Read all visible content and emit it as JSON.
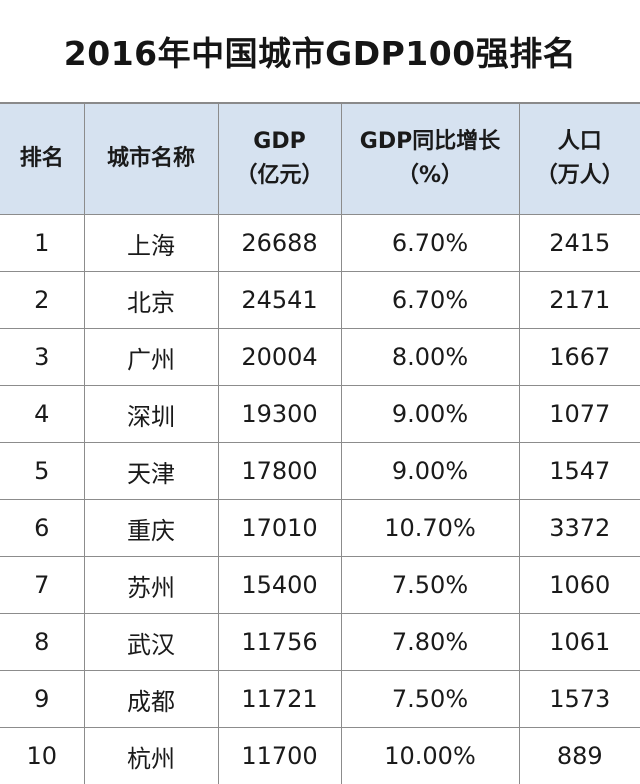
{
  "title": "2016年中国城市GDP100强排名",
  "headers": {
    "rank": "排名",
    "city": "城市名称",
    "gdp_line1": "GDP",
    "gdp_line2": "（亿元）",
    "growth_line1": "GDP同比增长",
    "growth_line2": "（%）",
    "pop_line1": "人口",
    "pop_line2": "（万人）"
  },
  "rows": [
    {
      "rank": "1",
      "city": "上海",
      "gdp": "26688",
      "growth": "6.70%",
      "population": "2415"
    },
    {
      "rank": "2",
      "city": "北京",
      "gdp": "24541",
      "growth": "6.70%",
      "population": "2171"
    },
    {
      "rank": "3",
      "city": "广州",
      "gdp": "20004",
      "growth": "8.00%",
      "population": "1667"
    },
    {
      "rank": "4",
      "city": "深圳",
      "gdp": "19300",
      "growth": "9.00%",
      "population": "1077"
    },
    {
      "rank": "5",
      "city": "天津",
      "gdp": "17800",
      "growth": "9.00%",
      "population": "1547"
    },
    {
      "rank": "6",
      "city": "重庆",
      "gdp": "17010",
      "growth": "10.70%",
      "population": "3372"
    },
    {
      "rank": "7",
      "city": "苏州",
      "gdp": "15400",
      "growth": "7.50%",
      "population": "1060"
    },
    {
      "rank": "8",
      "city": "武汉",
      "gdp": "11756",
      "growth": "7.80%",
      "population": "1061"
    },
    {
      "rank": "9",
      "city": "成都",
      "gdp": "11721",
      "growth": "7.50%",
      "population": "1573"
    },
    {
      "rank": "10",
      "city": "杭州",
      "gdp": "11700",
      "growth": "10.00%",
      "population": "889"
    }
  ],
  "colors": {
    "header_background": "#d6e2f0",
    "border": "#8c8c8c",
    "text": "#1a1a1a"
  }
}
